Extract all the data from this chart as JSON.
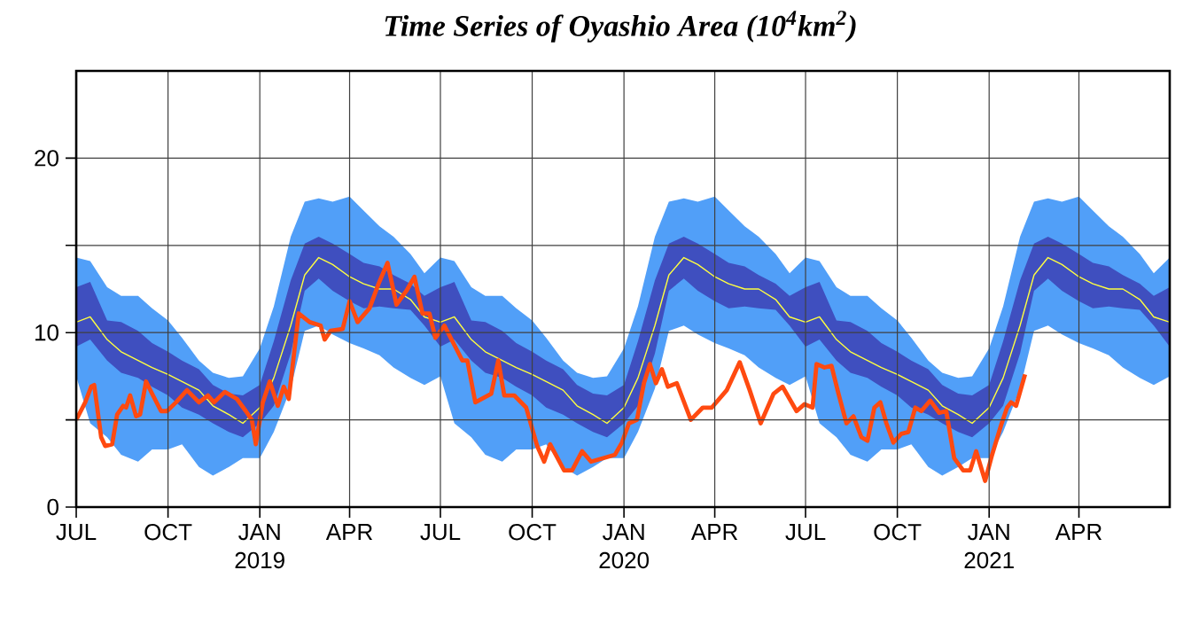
{
  "chart_data": {
    "type": "line",
    "title": "Time Series of Oyashio Area (10$^{4}$km$^{2}$)",
    "xlim": [
      "2018-07-01",
      "2021-07-01"
    ],
    "xticks": [
      {
        "value": "2018-07-01",
        "label": "JUL"
      },
      {
        "value": "2018-10-01",
        "label": "OCT"
      },
      {
        "value": "2019-01-01",
        "label": "JAN 2019"
      },
      {
        "value": "2019-04-01",
        "label": "APR"
      },
      {
        "value": "2019-07-01",
        "label": "JUL"
      },
      {
        "value": "2019-10-01",
        "label": "OCT"
      },
      {
        "value": "2020-01-01",
        "label": "JAN 2020"
      },
      {
        "value": "2020-04-01",
        "label": "APR"
      },
      {
        "value": "2020-07-01",
        "label": "JUL"
      },
      {
        "value": "2020-10-01",
        "label": "OCT"
      },
      {
        "value": "2021-01-01",
        "label": "JAN 2021"
      },
      {
        "value": "2021-04-01",
        "label": "APR"
      }
    ],
    "ylim": [
      0,
      25
    ],
    "yticks": [
      0,
      {
        "value": 5,
        "label": null
      },
      10,
      {
        "value": 15,
        "label": null
      },
      20
    ],
    "grid": true,
    "x": [
      "2018-07-01",
      "2018-07-15",
      "2018-08-01",
      "2018-08-15",
      "2018-09-01",
      "2018-09-15",
      "2018-10-01",
      "2018-10-15",
      "2018-11-01",
      "2018-11-15",
      "2018-12-01",
      "2018-12-15",
      "2019-01-01",
      "2019-01-15",
      "2019-02-01",
      "2019-02-15",
      "2019-03-01",
      "2019-03-15",
      "2019-04-01",
      "2019-04-15",
      "2019-05-01",
      "2019-05-15",
      "2019-06-01",
      "2019-06-15",
      "2019-07-01",
      "2019-07-15",
      "2019-08-01",
      "2019-08-15",
      "2019-09-01",
      "2019-09-15",
      "2019-10-01",
      "2019-10-15",
      "2019-11-01",
      "2019-11-15",
      "2019-12-01",
      "2019-12-15",
      "2020-01-01",
      "2020-01-15",
      "2020-02-01",
      "2020-02-15",
      "2020-03-01",
      "2020-03-15",
      "2020-04-01",
      "2020-04-15",
      "2020-05-01",
      "2020-05-15",
      "2020-06-01",
      "2020-06-15",
      "2020-07-01",
      "2020-07-15",
      "2020-08-01",
      "2020-08-15",
      "2020-09-01",
      "2020-09-15",
      "2020-10-01",
      "2020-10-15",
      "2020-11-01",
      "2020-11-15",
      "2020-12-01",
      "2020-12-15",
      "2021-01-01",
      "2021-01-15",
      "2021-02-01",
      "2021-02-15",
      "2021-03-01",
      "2021-03-15",
      "2021-04-01",
      "2021-04-15",
      "2021-05-01",
      "2021-05-15",
      "2021-06-01",
      "2021-06-15",
      "2021-07-01"
    ],
    "series": [
      {
        "color": "#519ff8",
        "values": [
          null,
          null,
          null,
          null,
          null,
          null,
          null,
          null,
          null,
          null,
          null,
          null,
          null,
          null,
          null,
          null,
          null,
          null,
          null,
          null,
          null,
          null,
          null,
          null,
          null,
          null,
          null,
          null,
          null,
          null,
          null,
          null,
          null,
          null,
          null,
          null,
          null,
          null,
          null,
          null,
          null,
          null,
          null,
          null,
          null,
          null,
          null,
          null,
          null,
          null,
          null,
          null,
          null,
          null,
          null,
          null,
          null,
          null,
          null,
          null,
          null,
          null,
          null,
          null,
          null,
          null,
          null,
          null,
          null,
          null,
          null,
          null,
          null
        ],
        "upper": [
          14.3,
          14.1,
          12.6,
          12.1,
          12.1,
          11.4,
          10.7,
          9.7,
          8.4,
          7.7,
          7.4,
          7.5,
          9.1,
          11.5,
          15.5,
          17.5,
          17.7,
          17.5,
          17.8,
          17.0,
          16.1,
          15.5,
          14.5,
          13.4,
          14.3,
          14.1,
          12.6,
          12.1,
          12.1,
          11.4,
          10.7,
          9.7,
          8.4,
          7.7,
          7.4,
          7.5,
          9.1,
          11.5,
          15.5,
          17.5,
          17.7,
          17.5,
          17.8,
          17.0,
          16.1,
          15.5,
          14.5,
          13.4,
          14.3,
          14.1,
          12.6,
          12.1,
          12.1,
          11.4,
          10.7,
          9.7,
          8.4,
          7.7,
          7.4,
          7.5,
          9.1,
          11.5,
          15.5,
          17.5,
          17.7,
          17.5,
          17.8,
          17.0,
          16.1,
          15.5,
          14.5,
          13.4,
          14.3
        ],
        "lower": [
          7.5,
          4.8,
          4.0,
          3.0,
          2.6,
          3.3,
          3.3,
          3.6,
          2.3,
          1.8,
          2.3,
          2.8,
          2.8,
          4.3,
          6.8,
          10.1,
          10.4,
          9.9,
          9.4,
          9.1,
          8.7,
          8.0,
          7.4,
          7.0,
          7.5,
          4.8,
          4.0,
          3.0,
          2.6,
          3.3,
          3.3,
          3.6,
          2.3,
          1.8,
          2.3,
          2.8,
          2.8,
          4.3,
          6.8,
          10.1,
          10.4,
          9.9,
          9.4,
          9.1,
          8.7,
          8.0,
          7.4,
          7.0,
          7.5,
          4.8,
          4.0,
          3.0,
          2.6,
          3.3,
          3.3,
          3.6,
          2.3,
          1.8,
          2.3,
          2.8,
          2.8,
          4.3,
          6.8,
          10.1,
          10.4,
          9.9,
          9.4,
          9.1,
          8.7,
          8.0,
          7.4,
          7.0,
          7.5
        ]
      },
      {
        "color": "#3f4fbf",
        "values": [
          null,
          null,
          null,
          null,
          null,
          null,
          null,
          null,
          null,
          null,
          null,
          null,
          null,
          null,
          null,
          null,
          null,
          null,
          null,
          null,
          null,
          null,
          null,
          null,
          null,
          null,
          null,
          null,
          null,
          null,
          null,
          null,
          null,
          null,
          null,
          null,
          null,
          null,
          null,
          null,
          null,
          null,
          null,
          null,
          null,
          null,
          null,
          null,
          null,
          null,
          null,
          null,
          null,
          null,
          null,
          null,
          null,
          null,
          null,
          null,
          null,
          null,
          null,
          null,
          null,
          null,
          null,
          null,
          null,
          null,
          null,
          null,
          null
        ],
        "upper": [
          12.6,
          12.9,
          10.7,
          10.6,
          10.1,
          9.4,
          8.9,
          8.4,
          7.9,
          7.0,
          6.5,
          6.4,
          7.0,
          9.5,
          13.0,
          15.1,
          15.5,
          15.1,
          14.5,
          14.0,
          13.8,
          13.3,
          12.8,
          12.1,
          12.6,
          12.9,
          10.7,
          10.6,
          10.1,
          9.4,
          8.9,
          8.4,
          7.9,
          7.0,
          6.5,
          6.4,
          7.0,
          9.5,
          13.0,
          15.1,
          15.5,
          15.1,
          14.5,
          14.0,
          13.8,
          13.3,
          12.8,
          12.1,
          12.6,
          12.9,
          10.7,
          10.6,
          10.1,
          9.4,
          8.9,
          8.4,
          7.9,
          7.0,
          6.5,
          6.4,
          7.0,
          9.5,
          13.0,
          15.1,
          15.5,
          15.1,
          14.5,
          14.0,
          13.8,
          13.3,
          12.8,
          12.1,
          12.6
        ],
        "lower": [
          9.2,
          9.6,
          8.4,
          7.7,
          7.4,
          6.9,
          6.4,
          5.7,
          5.3,
          4.8,
          4.3,
          4.0,
          4.8,
          5.8,
          8.8,
          12.4,
          13.1,
          12.4,
          11.8,
          11.4,
          11.5,
          11.4,
          11.3,
          10.4,
          9.2,
          9.6,
          8.4,
          7.7,
          7.4,
          6.9,
          6.4,
          5.7,
          5.3,
          4.8,
          4.3,
          4.0,
          4.8,
          5.8,
          8.8,
          12.4,
          13.1,
          12.4,
          11.8,
          11.4,
          11.5,
          11.4,
          11.3,
          10.4,
          9.2,
          9.6,
          8.4,
          7.7,
          7.4,
          6.9,
          6.4,
          5.7,
          5.3,
          4.8,
          4.3,
          4.0,
          4.8,
          5.8,
          8.8,
          12.4,
          13.1,
          12.4,
          11.8,
          11.4,
          11.5,
          11.4,
          11.3,
          10.4,
          9.2
        ]
      },
      {
        "color": "#ffff40",
        "values": [
          10.6,
          10.9,
          9.6,
          8.9,
          8.4,
          8.0,
          7.6,
          7.2,
          6.7,
          5.8,
          5.3,
          4.8,
          5.7,
          7.4,
          10.4,
          13.3,
          14.3,
          13.9,
          13.2,
          12.8,
          12.5,
          12.5,
          11.9,
          10.9,
          10.6,
          10.9,
          9.6,
          8.9,
          8.4,
          8.0,
          7.6,
          7.2,
          6.7,
          5.8,
          5.3,
          4.8,
          5.7,
          7.4,
          10.4,
          13.3,
          14.3,
          13.9,
          13.2,
          12.8,
          12.5,
          12.5,
          11.9,
          10.9,
          10.6,
          10.9,
          9.6,
          8.9,
          8.4,
          8.0,
          7.6,
          7.2,
          6.7,
          5.8,
          5.3,
          4.8,
          5.7,
          7.4,
          10.4,
          13.3,
          14.3,
          13.9,
          13.2,
          12.8,
          12.5,
          12.5,
          11.9,
          10.9,
          10.6
        ]
      },
      {
        "color": "#ff4a10",
        "x": [
          "2018-07-01",
          "2018-07-10",
          "2018-07-16",
          "2018-07-19",
          "2018-07-26",
          "2018-07-30",
          "2018-08-06",
          "2018-08-11",
          "2018-08-17",
          "2018-08-20",
          "2018-08-24",
          "2018-08-30",
          "2018-09-03",
          "2018-09-09",
          "2018-09-15",
          "2018-09-24",
          "2018-09-30",
          "2018-10-09",
          "2018-10-20",
          "2018-11-01",
          "2018-11-10",
          "2018-11-16",
          "2018-11-27",
          "2018-12-09",
          "2018-12-18",
          "2018-12-24",
          "2018-12-28",
          "2019-01-04",
          "2019-01-11",
          "2019-01-19",
          "2019-01-25",
          "2019-01-30",
          "2019-02-09",
          "2019-02-20",
          "2019-03-03",
          "2019-03-07",
          "2019-03-13",
          "2019-03-25",
          "2019-04-01",
          "2019-04-09",
          "2019-04-21",
          "2019-04-30",
          "2019-05-09",
          "2019-05-18",
          "2019-05-28",
          "2019-06-05",
          "2019-06-13",
          "2019-06-20",
          "2019-06-26",
          "2019-07-05",
          "2019-07-14",
          "2019-07-23",
          "2019-07-28",
          "2019-08-05",
          "2019-08-21",
          "2019-08-28",
          "2019-09-03",
          "2019-09-13",
          "2019-09-25",
          "2019-10-06",
          "2019-10-13",
          "2019-10-19",
          "2019-11-02",
          "2019-11-10",
          "2019-11-20",
          "2019-11-29",
          "2019-12-11",
          "2019-12-23",
          "2019-12-30",
          "2020-01-06",
          "2020-01-14",
          "2020-01-21",
          "2020-01-27",
          "2020-02-02",
          "2020-02-08",
          "2020-02-14",
          "2020-02-23",
          "2020-03-08",
          "2020-03-20",
          "2020-03-29",
          "2020-04-13",
          "2020-04-26",
          "2020-05-06",
          "2020-05-17",
          "2020-05-30",
          "2020-06-08",
          "2020-06-22",
          "2020-06-30",
          "2020-07-08",
          "2020-07-12",
          "2020-07-20",
          "2020-07-27",
          "2020-08-03",
          "2020-08-11",
          "2020-08-18",
          "2020-08-26",
          "2020-09-01",
          "2020-09-08",
          "2020-09-14",
          "2020-09-20",
          "2020-09-27",
          "2020-10-05",
          "2020-10-12",
          "2020-10-19",
          "2020-10-25",
          "2020-11-03",
          "2020-11-12",
          "2020-11-19",
          "2020-11-27",
          "2020-12-06",
          "2020-12-13",
          "2020-12-19",
          "2020-12-28",
          "2021-01-04",
          "2021-01-13",
          "2021-01-19",
          "2021-01-23",
          "2021-01-28",
          "2021-02-06"
        ],
        "values": [
          5.0,
          6.0,
          6.9,
          7.0,
          4.0,
          3.5,
          3.6,
          5.3,
          5.8,
          5.7,
          6.4,
          5.2,
          5.3,
          7.2,
          6.5,
          5.5,
          5.5,
          6.0,
          6.7,
          6.0,
          6.4,
          6.0,
          6.6,
          6.2,
          5.5,
          5.0,
          3.6,
          6.0,
          7.2,
          5.8,
          6.9,
          6.2,
          11.1,
          10.6,
          10.4,
          9.6,
          10.1,
          10.2,
          11.8,
          10.6,
          11.4,
          12.8,
          14.0,
          11.6,
          12.4,
          13.2,
          11.1,
          11.1,
          9.7,
          10.4,
          9.4,
          8.4,
          8.4,
          6.0,
          6.5,
          8.4,
          6.4,
          6.4,
          5.7,
          3.5,
          2.6,
          3.6,
          2.1,
          2.1,
          3.2,
          2.6,
          2.8,
          3.0,
          3.7,
          4.8,
          5.0,
          7.1,
          8.2,
          7.1,
          7.9,
          6.9,
          7.1,
          5.0,
          5.7,
          5.7,
          6.7,
          8.3,
          6.7,
          4.8,
          6.5,
          6.9,
          5.5,
          5.9,
          5.7,
          8.2,
          8.0,
          8.1,
          6.5,
          4.8,
          5.2,
          4.0,
          3.8,
          5.7,
          6.0,
          4.8,
          3.7,
          4.2,
          4.3,
          5.7,
          5.5,
          6.1,
          5.4,
          5.5,
          2.8,
          2.1,
          2.1,
          3.2,
          1.5,
          3.0,
          4.7,
          5.7,
          6.0,
          5.8,
          7.6
        ]
      }
    ]
  }
}
